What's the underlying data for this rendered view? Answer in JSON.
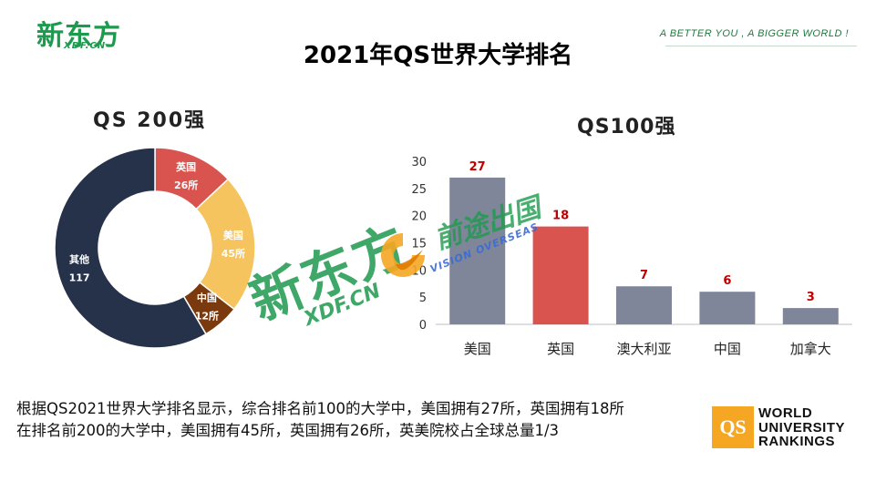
{
  "header": {
    "logo_text": "新东方",
    "logo_sub": "XDF.CN",
    "slogan": "A BETTER YOU , A BIGGER WORLD !"
  },
  "page_title": "2021年QS世界大学排名",
  "watermark": {
    "brand": "新东方",
    "brand_sub": "XDF.CN",
    "partner_cn": "前途出国",
    "partner_en": "VISION OVERSEAS"
  },
  "chart_data": [
    {
      "type": "pie",
      "title": "QS 200强",
      "slices": [
        {
          "label": "英国",
          "value": 26,
          "display": "26所",
          "color": "#d9534f"
        },
        {
          "label": "美国",
          "value": 45,
          "display": "45所",
          "color": "#f5c45e"
        },
        {
          "label": "中国",
          "value": 12,
          "display": "12所",
          "color": "#7b3a0e"
        },
        {
          "label": "其他",
          "value": 117,
          "display": "117",
          "color": "#25324a"
        }
      ]
    },
    {
      "type": "bar",
      "title": "QS100强",
      "categories": [
        "美国",
        "英国",
        "澳大利亚",
        "中国",
        "加拿大"
      ],
      "values": [
        27,
        18,
        7,
        6,
        3
      ],
      "colors": [
        "#7f8699",
        "#d9534f",
        "#7f8699",
        "#7f8699",
        "#7f8699"
      ],
      "value_label_color": "#c00000",
      "ylim": [
        0,
        30
      ],
      "yticks": [
        0,
        5,
        10,
        15,
        20,
        25,
        30
      ],
      "grid": false
    }
  ],
  "caption": {
    "line1": "根据QS2021世界大学排名显示，综合排名前100的大学中，美国拥有27所，英国拥有18所",
    "line2": "在排名前200的大学中，美国拥有45所，英国拥有26所，英美院校占全球总量1/3"
  },
  "qs_badge": {
    "mark": "QS",
    "line1": "WORLD",
    "line2": "UNIVERSITY",
    "line3": "RANKINGS"
  }
}
